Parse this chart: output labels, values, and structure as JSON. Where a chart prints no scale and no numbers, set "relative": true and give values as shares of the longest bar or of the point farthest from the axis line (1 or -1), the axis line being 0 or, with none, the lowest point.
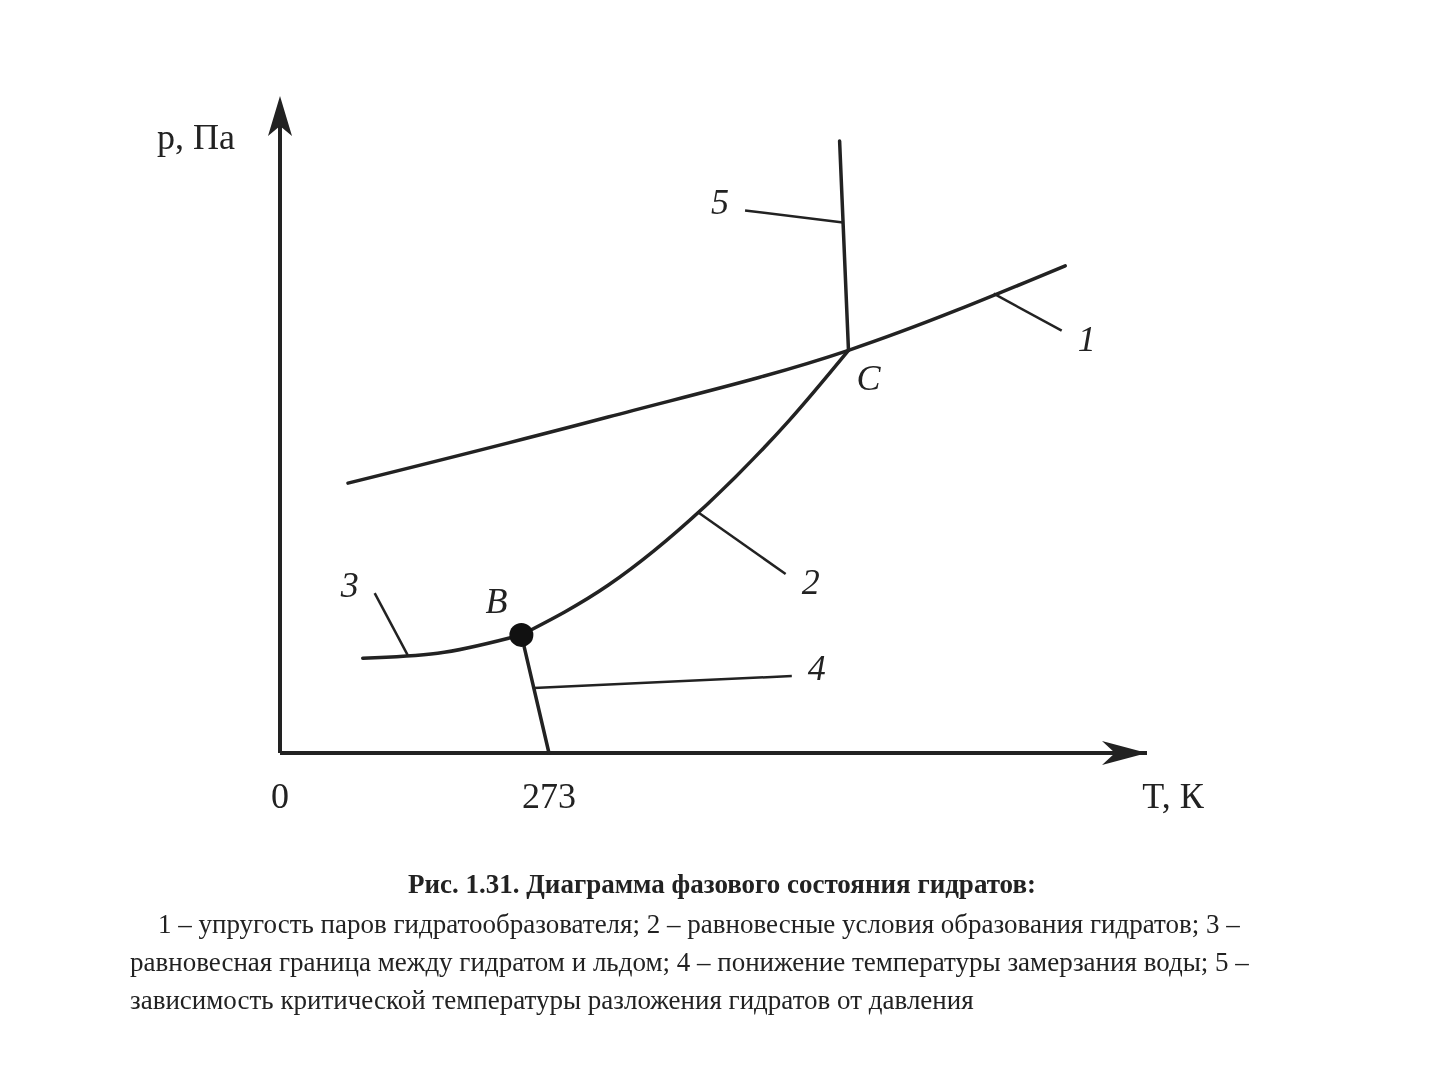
{
  "chart_data": {
    "type": "line",
    "relative": true,
    "title": "Рис. 1.31. Диаграмма   фазового состояния гидратов:",
    "annotations": [
      "1 – упругость паров гидратообразователя; 2 – равновесные   условия образования гидратов; 3 – равновесная граница   между гидратом и льдом; 4 – понижение   температуры замерзания  воды; 5 – зависимость критической температуры   разложения гидратов от давления",
      {
        "text": "B",
        "x": 245,
        "y": 0.193
      },
      {
        "text": "C",
        "x": 577,
        "y": 0.658
      }
    ],
    "xlabel": "T, К",
    "ylabel": "p, Па",
    "xlim": [
      0,
      880
    ],
    "xticks": [
      0,
      273
    ],
    "grid": false,
    "line_style": "solid",
    "series": [
      {
        "name": "1",
        "color": "#222222",
        "x": [
          69,
          333,
          577,
          797
        ],
        "values": [
          0.441,
          0.549,
          0.658,
          0.796
        ]
      },
      {
        "name": "2",
        "color": "#222222",
        "x": [
          245,
          333,
          434,
          516,
          577
        ],
        "values": [
          0.193,
          0.274,
          0.407,
          0.542,
          0.658
        ]
      },
      {
        "name": "3",
        "color": "#222222",
        "x": [
          84,
          160,
          245
        ],
        "values": [
          0.155,
          0.163,
          0.193
        ]
      },
      {
        "name": "4",
        "color": "#222222",
        "x": [
          245,
          273
        ],
        "values": [
          0.193,
          0
        ]
      },
      {
        "name": "5",
        "color": "#222222",
        "x": [
          577,
          573,
          568
        ],
        "values": [
          0.658,
          0.81,
          1
        ]
      },
      {
        "type": "scatter",
        "marker": "circle",
        "color": "#111111",
        "x": [
          245
        ],
        "values": [
          0.193
        ]
      }
    ]
  }
}
